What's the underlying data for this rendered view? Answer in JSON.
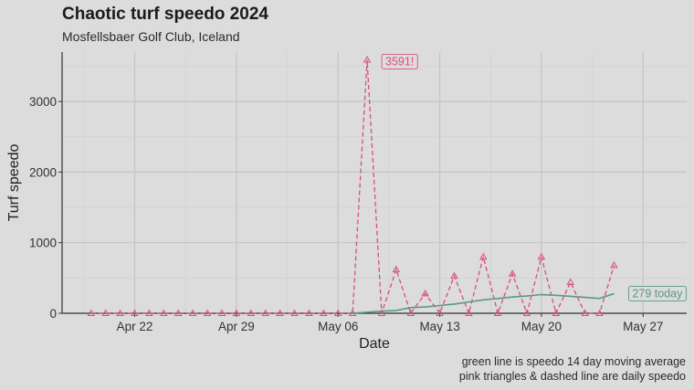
{
  "chart_data": {
    "type": "line",
    "title": "Chaotic turf speedo 2024",
    "subtitle": "Mosfellsbaer Golf Club, Iceland",
    "xlabel": "Date",
    "ylabel": "Turf speedo",
    "caption_lines": [
      "green line is speedo 14 day moving average",
      "pink triangles & dashed line are daily speedo"
    ],
    "x_ticks": [
      "Apr 22",
      "Apr 29",
      "May 06",
      "May 13",
      "May 20",
      "May 27"
    ],
    "y_ticks": [
      0,
      1000,
      2000,
      3000
    ],
    "ylim": [
      0,
      3700
    ],
    "xlim": [
      "2024-04-17",
      "2024-05-30"
    ],
    "series": [
      {
        "kind": "daily",
        "color": "#d94f7c",
        "x": [
          "2024-04-19",
          "2024-04-20",
          "2024-04-21",
          "2024-04-22",
          "2024-04-23",
          "2024-04-24",
          "2024-04-25",
          "2024-04-26",
          "2024-04-27",
          "2024-04-28",
          "2024-04-29",
          "2024-04-30",
          "2024-05-01",
          "2024-05-02",
          "2024-05-03",
          "2024-05-04",
          "2024-05-05",
          "2024-05-06",
          "2024-05-07",
          "2024-05-08",
          "2024-05-09",
          "2024-05-10",
          "2024-05-11",
          "2024-05-12",
          "2024-05-13",
          "2024-05-14",
          "2024-05-15",
          "2024-05-16",
          "2024-05-17",
          "2024-05-18",
          "2024-05-19",
          "2024-05-20",
          "2024-05-21",
          "2024-05-22",
          "2024-05-23",
          "2024-05-24",
          "2024-05-25"
        ],
        "values": [
          0,
          0,
          0,
          0,
          0,
          0,
          0,
          0,
          0,
          0,
          0,
          0,
          0,
          0,
          0,
          0,
          0,
          0,
          0,
          3591,
          0,
          620,
          0,
          280,
          0,
          530,
          0,
          800,
          0,
          560,
          0,
          800,
          0,
          440,
          0,
          0,
          680
        ]
      },
      {
        "kind": "moving_average",
        "color": "#5a9a7e",
        "x": [
          "2024-05-07",
          "2024-05-08",
          "2024-05-09",
          "2024-05-10",
          "2024-05-11",
          "2024-05-12",
          "2024-05-13",
          "2024-05-14",
          "2024-05-15",
          "2024-05-16",
          "2024-05-17",
          "2024-05-18",
          "2024-05-19",
          "2024-05-20",
          "2024-05-21",
          "2024-05-22",
          "2024-05-23",
          "2024-05-24",
          "2024-05-25"
        ],
        "values": [
          0,
          15,
          30,
          40,
          80,
          90,
          110,
          130,
          160,
          190,
          210,
          230,
          245,
          265,
          255,
          240,
          225,
          210,
          279
        ]
      }
    ],
    "annotations": [
      {
        "text": "3591!",
        "color": "#d94f7c"
      },
      {
        "text": "279 today",
        "color": "#5a9a7e"
      }
    ]
  }
}
